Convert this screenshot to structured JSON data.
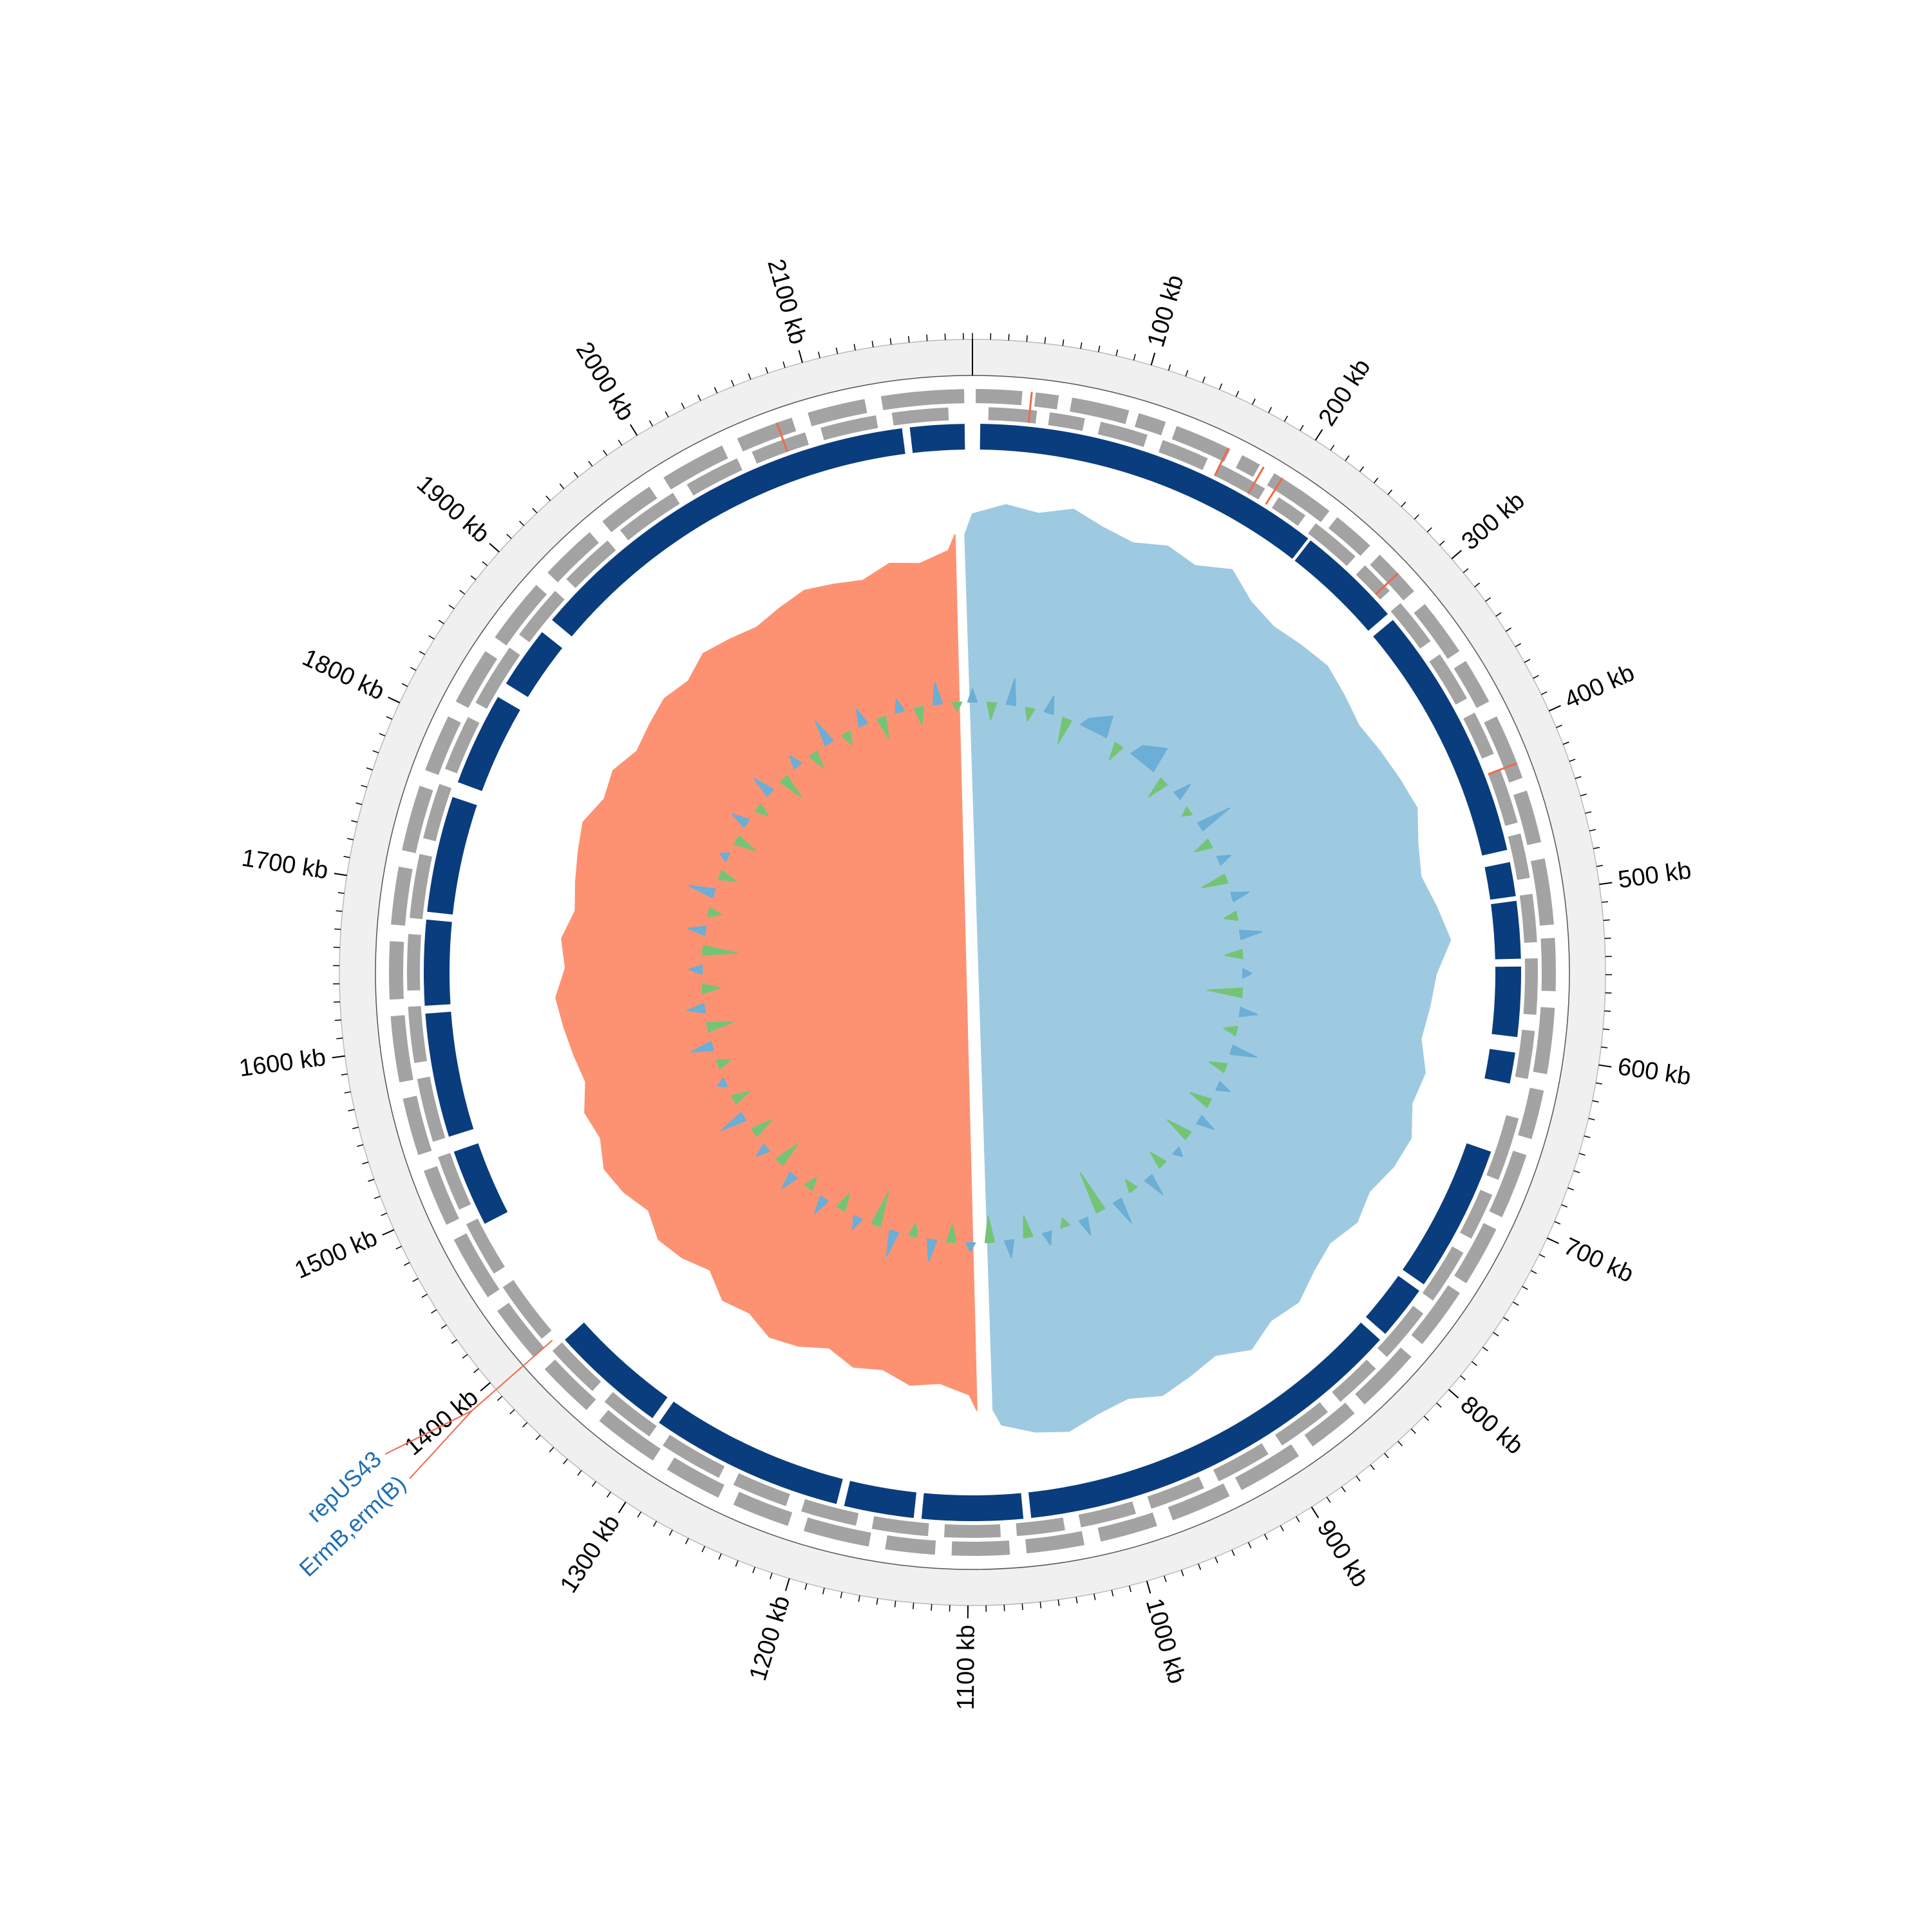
{
  "chart_data": {
    "type": "circos",
    "xlim": [
      0,
      2195
    ],
    "xticks": [
      {
        "value": 100,
        "label": "100 kb"
      },
      {
        "value": 200,
        "label": "200 kb"
      },
      {
        "value": 300,
        "label": "300 kb"
      },
      {
        "value": 400,
        "label": "400 kb"
      },
      {
        "value": 500,
        "label": "500 kb"
      },
      {
        "value": 600,
        "label": "600 kb"
      },
      {
        "value": 700,
        "label": "700 kb"
      },
      {
        "value": 800,
        "label": "800 kb"
      },
      {
        "value": 900,
        "label": "900 kb"
      },
      {
        "value": 1000,
        "label": "1000 kb"
      },
      {
        "value": 1100,
        "label": "1100 kb"
      },
      {
        "value": 1200,
        "label": "1200 kb"
      },
      {
        "value": 1300,
        "label": "1300 kb"
      },
      {
        "value": 1400,
        "label": "1400 kb"
      },
      {
        "value": 1500,
        "label": "1500 kb"
      },
      {
        "value": 1600,
        "label": "1600 kb"
      },
      {
        "value": 1700,
        "label": "1700 kb"
      },
      {
        "value": 1800,
        "label": "1800 kb"
      },
      {
        "value": 1900,
        "label": "1900 kb"
      },
      {
        "value": 2000,
        "label": "2000 kb"
      },
      {
        "value": 2100,
        "label": "2100 kb"
      }
    ],
    "minor_tick_step": 10,
    "genes_forward": {
      "color": "#a3a3a3",
      "intervals": [
        [
          2,
          30
        ],
        [
          38,
          52
        ],
        [
          60,
          95
        ],
        [
          101,
          118
        ],
        [
          125,
          160
        ],
        [
          168,
          180
        ],
        [
          190,
          230
        ],
        [
          236,
          262
        ],
        [
          270,
          300
        ],
        [
          310,
          345
        ],
        [
          352,
          380
        ],
        [
          390,
          430
        ],
        [
          438,
          470
        ],
        [
          480,
          520
        ],
        [
          528,
          560
        ],
        [
          570,
          610
        ],
        [
          620,
          650
        ],
        [
          660,
          700
        ],
        [
          708,
          745
        ],
        [
          752,
          790
        ],
        [
          800,
          840
        ],
        [
          848,
          880
        ],
        [
          890,
          930
        ],
        [
          938,
          975
        ],
        [
          985,
          1020
        ],
        [
          1030,
          1065
        ],
        [
          1075,
          1110
        ],
        [
          1120,
          1150
        ],
        [
          1160,
          1200
        ],
        [
          1210,
          1245
        ],
        [
          1255,
          1290
        ],
        [
          1300,
          1340
        ],
        [
          1350,
          1385
        ],
        [
          1395,
          1430
        ],
        [
          1440,
          1480
        ],
        [
          1490,
          1525
        ],
        [
          1535,
          1570
        ],
        [
          1580,
          1620
        ],
        [
          1630,
          1665
        ],
        [
          1675,
          1710
        ],
        [
          1720,
          1760
        ],
        [
          1770,
          1805
        ],
        [
          1815,
          1850
        ],
        [
          1860,
          1900
        ],
        [
          1910,
          1945
        ],
        [
          1955,
          1990
        ],
        [
          2000,
          2040
        ],
        [
          2050,
          2085
        ],
        [
          2095,
          2130
        ],
        [
          2140,
          2190
        ]
      ]
    },
    "genes_reverse": {
      "color": "#a3a3a3",
      "intervals": [
        [
          10,
          40
        ],
        [
          48,
          70
        ],
        [
          80,
          110
        ],
        [
          120,
          150
        ],
        [
          158,
          190
        ],
        [
          200,
          220
        ],
        [
          228,
          260
        ],
        [
          268,
          290
        ],
        [
          300,
          330
        ],
        [
          340,
          372
        ],
        [
          382,
          410
        ],
        [
          420,
          455
        ],
        [
          462,
          490
        ],
        [
          500,
          530
        ],
        [
          540,
          575
        ],
        [
          585,
          615
        ],
        [
          640,
          680
        ],
        [
          690,
          720
        ],
        [
          730,
          765
        ],
        [
          775,
          810
        ],
        [
          820,
          850
        ],
        [
          860,
          895
        ],
        [
          905,
          940
        ],
        [
          950,
          985
        ],
        [
          995,
          1030
        ],
        [
          1040,
          1070
        ],
        [
          1080,
          1115
        ],
        [
          1125,
          1160
        ],
        [
          1170,
          1205
        ],
        [
          1215,
          1250
        ],
        [
          1260,
          1300
        ],
        [
          1310,
          1345
        ],
        [
          1355,
          1390
        ],
        [
          1400,
          1440
        ],
        [
          1450,
          1485
        ],
        [
          1495,
          1530
        ],
        [
          1540,
          1580
        ],
        [
          1590,
          1625
        ],
        [
          1635,
          1670
        ],
        [
          1680,
          1720
        ],
        [
          1730,
          1765
        ],
        [
          1775,
          1810
        ],
        [
          1820,
          1860
        ],
        [
          1870,
          1905
        ],
        [
          1915,
          1950
        ],
        [
          1960,
          2000
        ],
        [
          2010,
          2045
        ],
        [
          2055,
          2090
        ],
        [
          2100,
          2135
        ],
        [
          2145,
          2180
        ]
      ]
    },
    "rna_features": {
      "color": "#f0694a",
      "positions": [
        35,
        158,
        182,
        195,
        285,
        420,
        2075
      ]
    },
    "homology_blocks": {
      "color": "#0a3d7e",
      "intervals": [
        [
          5,
          230
        ],
        [
          232,
          300
        ],
        [
          305,
          470
        ],
        [
          478,
          500
        ],
        [
          503,
          540
        ],
        [
          545,
          590
        ],
        [
          600,
          620
        ],
        [
          665,
          760
        ],
        [
          765,
          800
        ],
        [
          805,
          1060
        ],
        [
          1065,
          1130
        ],
        [
          1135,
          1180
        ],
        [
          1185,
          1310
        ],
        [
          1315,
          1390
        ],
        [
          1480,
          1530
        ],
        [
          1540,
          1620
        ],
        [
          1625,
          1680
        ],
        [
          1685,
          1760
        ],
        [
          1770,
          1830
        ],
        [
          1840,
          1880
        ],
        [
          1890,
          2150
        ],
        [
          2155,
          2190
        ]
      ]
    },
    "x": [
      0,
      25,
      50,
      75,
      100,
      125,
      150,
      175,
      200,
      225,
      250,
      275,
      300,
      325,
      350,
      375,
      400,
      425,
      450,
      475,
      500,
      525,
      550,
      575,
      600,
      625,
      650,
      675,
      700,
      725,
      750,
      775,
      800,
      825,
      850,
      875,
      900,
      925,
      950,
      975,
      1000,
      1025,
      1050,
      1075,
      1100,
      1125,
      1150,
      1175,
      1200,
      1225,
      1250,
      1275,
      1300,
      1325,
      1350,
      1375,
      1400,
      1425,
      1450,
      1475,
      1500,
      1525,
      1550,
      1575,
      1600,
      1625,
      1650,
      1675,
      1700,
      1725,
      1750,
      1775,
      1800,
      1825,
      1850,
      1875,
      1900,
      1925,
      1950,
      1975,
      2000,
      2025,
      2050,
      2075,
      2100,
      2125,
      2150,
      2175
    ],
    "gc_skew": {
      "positive_color": "#9ecae1",
      "negative_color": "#fc9272",
      "ylim": [
        -0.1,
        0.1
      ],
      "values": [
        0.04,
        0.06,
        0.05,
        0.07,
        0.05,
        0.04,
        0.06,
        0.05,
        0.08,
        0.05,
        0.04,
        0.05,
        0.06,
        0.05,
        0.04,
        0.05,
        0.06,
        0.07,
        0.05,
        0.04,
        0.06,
        0.08,
        0.05,
        0.04,
        0.03,
        0.05,
        0.04,
        0.06,
        0.05,
        0.03,
        0.04,
        0.02,
        0.03,
        0.05,
        0.04,
        0.06,
        0.03,
        0.04,
        0.05,
        0.03,
        0.04,
        0.06,
        0.05,
        0.03,
        -0.03,
        -0.05,
        -0.04,
        -0.06,
        -0.05,
        -0.07,
        -0.05,
        -0.04,
        -0.06,
        -0.05,
        -0.08,
        -0.06,
        -0.05,
        -0.07,
        -0.05,
        -0.04,
        -0.06,
        -0.05,
        -0.07,
        -0.06,
        -0.05,
        -0.04,
        -0.06,
        -0.05,
        -0.07,
        -0.06,
        -0.05,
        -0.04,
        -0.06,
        -0.05,
        -0.07,
        -0.06,
        -0.05,
        -0.06,
        -0.04,
        -0.05,
        -0.06,
        -0.05,
        -0.04,
        -0.05,
        -0.06,
        -0.04,
        -0.05,
        -0.03
      ]
    },
    "gc_content": {
      "positive_color": "#6baed6",
      "negative_color": "#74c476",
      "ylim": [
        -10,
        10
      ],
      "values": [
        1.5,
        -2,
        3,
        -1.5,
        2,
        -3,
        1,
        2.5,
        -2,
        1.5,
        3,
        -2.5,
        2,
        -1,
        4,
        -2,
        1.5,
        -3,
        2,
        -1.5,
        2.5,
        -2,
        1,
        -4,
        2,
        -1.5,
        3,
        -2,
        1.5,
        -2.5,
        2,
        -3,
        1,
        -2,
        2.5,
        -1.5,
        3,
        -5,
        2,
        -1,
        1.5,
        -2.5,
        2,
        -3,
        1,
        -2,
        2.5,
        -1.5,
        3,
        -4,
        1.5,
        -2,
        2,
        -1.5,
        2,
        -3,
        1.5,
        -2.5,
        3,
        -2,
        1,
        -1.5,
        2.5,
        -3,
        2,
        -2,
        1.5,
        -4,
        2,
        -1.5,
        3,
        -2,
        1,
        -2.5,
        2,
        -1.5,
        2.5,
        -3,
        1.5,
        -2,
        3,
        -1.5,
        2,
        -2.5,
        1.5,
        -2,
        2.5,
        -1
      ]
    },
    "annotation": {
      "position": 1395,
      "labels": [
        "repUS43",
        "ErmB,erm(B)"
      ],
      "color": "#1f6fb4",
      "line_color": "#f0694a"
    }
  }
}
